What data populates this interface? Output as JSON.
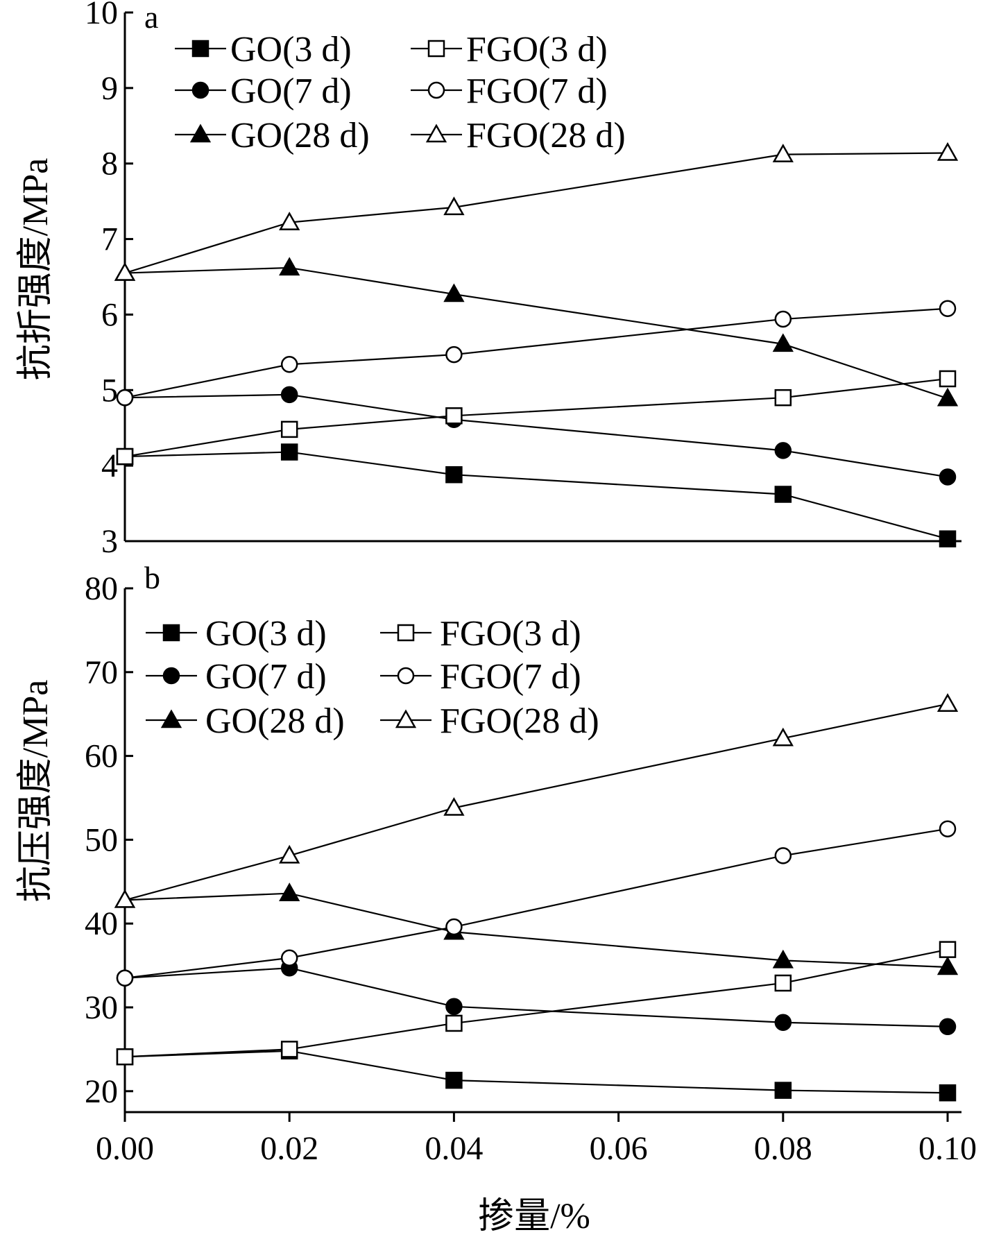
{
  "chart_data": [
    {
      "type": "line",
      "panel_label": "a",
      "ylabel": "抗折强度/MPa",
      "xlabel": "",
      "x": [
        0.0,
        0.02,
        0.04,
        0.08,
        0.1
      ],
      "ylim": [
        3,
        10
      ],
      "yticks": [
        "3",
        "4",
        "5",
        "6",
        "7",
        "8",
        "9",
        "10"
      ],
      "legend_position": "top-left",
      "series": [
        {
          "name": "GO(3 d)",
          "marker": "square",
          "filled": true,
          "values": [
            4.12,
            4.18,
            3.88,
            3.62,
            3.03
          ]
        },
        {
          "name": "GO(7 d)",
          "marker": "circle",
          "filled": true,
          "values": [
            4.9,
            4.94,
            4.61,
            4.2,
            3.85
          ]
        },
        {
          "name": "GO(28 d)",
          "marker": "triangle",
          "filled": true,
          "values": [
            6.55,
            6.62,
            6.27,
            5.61,
            4.89
          ]
        },
        {
          "name": "FGO(3 d)",
          "marker": "square",
          "filled": false,
          "values": [
            4.12,
            4.48,
            4.66,
            4.9,
            5.15
          ]
        },
        {
          "name": "FGO(7 d)",
          "marker": "circle",
          "filled": false,
          "values": [
            4.9,
            5.34,
            5.47,
            5.94,
            6.08
          ]
        },
        {
          "name": "FGO(28 d)",
          "marker": "triangle",
          "filled": false,
          "values": [
            6.55,
            7.22,
            7.42,
            8.12,
            8.14
          ]
        }
      ]
    },
    {
      "type": "line",
      "panel_label": "b",
      "ylabel": "抗压强度/MPa",
      "xlabel": "掺量/%",
      "x": [
        0.0,
        0.02,
        0.04,
        0.08,
        0.1
      ],
      "xlim": [
        0.0,
        0.1
      ],
      "xticks": [
        "0.00",
        "0.02",
        "0.04",
        "0.06",
        "0.08",
        "0.10"
      ],
      "ylim": [
        17.5,
        80
      ],
      "yticks": [
        "20",
        "30",
        "40",
        "50",
        "60",
        "70",
        "80"
      ],
      "legend_position": "top-left",
      "series": [
        {
          "name": "GO(3 d)",
          "marker": "square",
          "filled": true,
          "values": [
            24.1,
            24.8,
            21.3,
            20.1,
            19.8
          ]
        },
        {
          "name": "GO(7 d)",
          "marker": "circle",
          "filled": true,
          "values": [
            33.5,
            34.7,
            30.1,
            28.2,
            27.7
          ]
        },
        {
          "name": "GO(28 d)",
          "marker": "triangle",
          "filled": true,
          "values": [
            42.8,
            43.6,
            39.0,
            35.6,
            34.8
          ]
        },
        {
          "name": "FGO(3 d)",
          "marker": "square",
          "filled": false,
          "values": [
            24.1,
            25.0,
            28.1,
            32.9,
            36.9
          ]
        },
        {
          "name": "FGO(7 d)",
          "marker": "circle",
          "filled": false,
          "values": [
            33.5,
            35.9,
            39.6,
            48.1,
            51.3
          ]
        },
        {
          "name": "FGO(28 d)",
          "marker": "triangle",
          "filled": false,
          "values": [
            42.8,
            48.1,
            53.8,
            62.1,
            66.2
          ]
        }
      ]
    }
  ]
}
